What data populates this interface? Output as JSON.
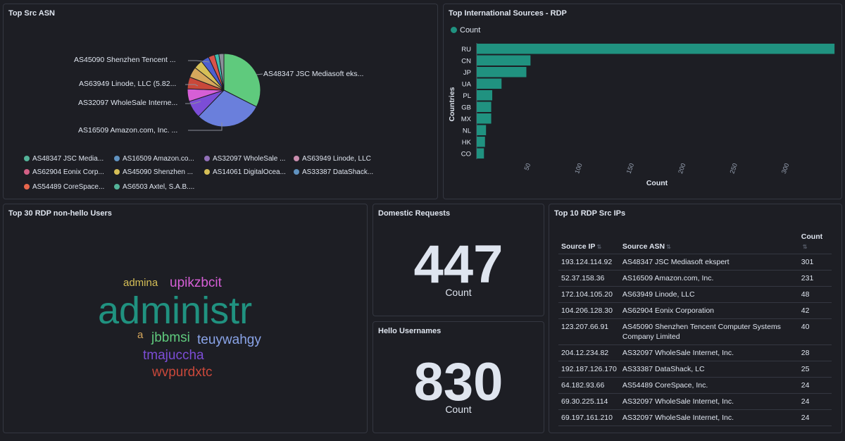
{
  "panels": {
    "asn": {
      "title": "Top Src ASN"
    },
    "intl": {
      "title": "Top International Sources - RDP"
    },
    "users": {
      "title": "Top 30 RDP non-hello Users"
    },
    "domestic": {
      "title": "Domestic Requests",
      "value": "447",
      "label": "Count"
    },
    "hello": {
      "title": "Hello Usernames",
      "value": "830",
      "label": "Count"
    },
    "ips": {
      "title": "Top 10 RDP Src IPs"
    }
  },
  "pie": {
    "callouts": {
      "tencent": "AS45090 Shenzhen Tencent ...",
      "linode": "AS63949 Linode, LLC (5.82...",
      "wholesale": "AS32097 WholeSale Interne...",
      "amazon": "AS16509 Amazon.com, Inc. ...",
      "jsc": "AS48347 JSC Mediasoft eks..."
    },
    "legend": [
      {
        "label": "AS48347 JSC Media...",
        "color": "#54b399"
      },
      {
        "label": "AS16509 Amazon.co...",
        "color": "#6092c0"
      },
      {
        "label": "AS32097 WholeSale ...",
        "color": "#9170b8"
      },
      {
        "label": "AS63949 Linode, LLC",
        "color": "#ca8eae"
      },
      {
        "label": "AS62904 Eonix Corp...",
        "color": "#d36086"
      },
      {
        "label": "AS45090 Shenzhen ...",
        "color": "#d6bf57"
      },
      {
        "label": "AS14061 DigitalOcea...",
        "color": "#d6bf57"
      },
      {
        "label": "AS33387 DataShack...",
        "color": "#6092c0"
      },
      {
        "label": "AS54489 CoreSpace...",
        "color": "#e7664c"
      },
      {
        "label": "AS6503 Axtel, S.A.B....",
        "color": "#54b399"
      }
    ]
  },
  "colors": {
    "bar": "#209280",
    "accent": "#209280",
    "jsc": "#5fca7d",
    "amazon": "#6a7fdc",
    "wholesale": "#7c4dd6",
    "linode": "#d65fd6",
    "eonix": "#c9483a",
    "tencent": "#d6a75c",
    "digitalocean": "#d6bf57",
    "datashack": "#4d5fcf",
    "corespace": "#d8544b",
    "axtel": "#3fbdb0"
  },
  "chart_data": {
    "type": "bar",
    "orientation": "horizontal",
    "legend": "Count",
    "categories": [
      "RU",
      "CN",
      "JP",
      "UA",
      "PL",
      "GB",
      "MX",
      "NL",
      "HK",
      "CO"
    ],
    "values": [
      346,
      52,
      48,
      24,
      15,
      14,
      14,
      9,
      8,
      7
    ],
    "xlabel": "Count",
    "ylabel": "Countries",
    "xticks": [
      "50",
      "100",
      "150",
      "200",
      "250",
      "300"
    ],
    "xlim": [
      0,
      350
    ]
  },
  "wordcloud": [
    {
      "text": "admina",
      "color": "#d6bf57"
    },
    {
      "text": "upikzbcit",
      "color": "#d65fd6"
    },
    {
      "text": "administr",
      "color": "#209280"
    },
    {
      "text": "a",
      "color": "#d6a75c"
    },
    {
      "text": "jbbmsi",
      "color": "#5fca7d"
    },
    {
      "text": "teuywahgy",
      "color": "#8aa4e8"
    },
    {
      "text": "tmajuccha",
      "color": "#7c4dd6"
    },
    {
      "text": "wvpurdxtc",
      "color": "#c9483a"
    }
  ],
  "table": {
    "headers": {
      "ip": "Source IP",
      "asn": "Source ASN",
      "count": "Count"
    },
    "rows": [
      {
        "ip": "193.124.114.92",
        "asn": "AS48347 JSC Mediasoft ekspert",
        "count": "301"
      },
      {
        "ip": "52.37.158.36",
        "asn": "AS16509 Amazon.com, Inc.",
        "count": "231"
      },
      {
        "ip": "172.104.105.20",
        "asn": "AS63949 Linode, LLC",
        "count": "48"
      },
      {
        "ip": "104.206.128.30",
        "asn": "AS62904 Eonix Corporation",
        "count": "42"
      },
      {
        "ip": "123.207.66.91",
        "asn": "AS45090 Shenzhen Tencent Computer Systems Company Limited",
        "count": "40"
      },
      {
        "ip": "204.12.234.82",
        "asn": "AS32097 WholeSale Internet, Inc.",
        "count": "28"
      },
      {
        "ip": "192.187.126.170",
        "asn": "AS33387 DataShack, LC",
        "count": "25"
      },
      {
        "ip": "64.182.93.66",
        "asn": "AS54489 CoreSpace, Inc.",
        "count": "24"
      },
      {
        "ip": "69.30.225.114",
        "asn": "AS32097 WholeSale Internet, Inc.",
        "count": "24"
      },
      {
        "ip": "69.197.161.210",
        "asn": "AS32097 WholeSale Internet, Inc.",
        "count": "24"
      }
    ]
  }
}
